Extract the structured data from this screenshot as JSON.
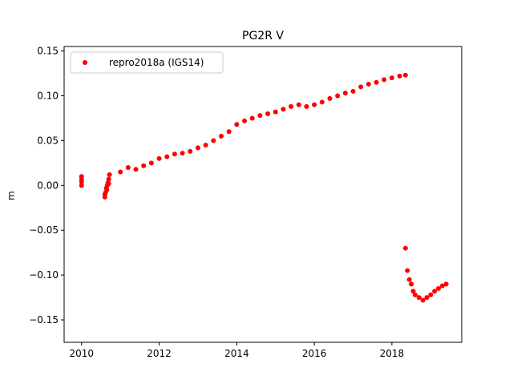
{
  "chart_data": {
    "type": "scatter",
    "title": "PG2R V",
    "xlabel": "",
    "ylabel": "m",
    "xlim": [
      2009.55,
      2019.8
    ],
    "ylim": [
      -0.175,
      0.155
    ],
    "xticks": [
      2010,
      2012,
      2014,
      2016,
      2018
    ],
    "yticks": [
      -0.15,
      -0.1,
      -0.05,
      0.0,
      0.05,
      0.1,
      0.15
    ],
    "xtick_labels": [
      "2010",
      "2012",
      "2014",
      "2016",
      "2018"
    ],
    "ytick_labels": [
      "−0.15",
      "−0.10",
      "−0.05",
      "0.00",
      "0.05",
      "0.10",
      "0.15"
    ],
    "grid": false,
    "legend_position": "top-left",
    "series": [
      {
        "name": "repro2018a (IGS14)",
        "color": "#ff0000",
        "marker": "circle",
        "x": [
          2010.0,
          2010.0,
          2010.0,
          2010.0,
          2010.6,
          2010.62,
          2010.64,
          2010.66,
          2010.68,
          2010.7,
          2010.72,
          2010.6,
          2010.65,
          2010.7,
          2011.0,
          2011.2,
          2011.4,
          2011.6,
          2011.8,
          2012.0,
          2012.2,
          2012.4,
          2012.6,
          2012.8,
          2013.0,
          2013.2,
          2013.4,
          2013.6,
          2013.8,
          2014.0,
          2014.2,
          2014.4,
          2014.6,
          2014.8,
          2015.0,
          2015.2,
          2015.4,
          2015.6,
          2015.8,
          2016.0,
          2016.2,
          2016.4,
          2016.6,
          2016.8,
          2017.0,
          2017.2,
          2017.4,
          2017.6,
          2017.8,
          2018.0,
          2018.2,
          2018.35,
          2018.35,
          2018.4,
          2018.45,
          2018.5,
          2018.55,
          2018.6,
          2018.7,
          2018.8,
          2018.9,
          2019.0,
          2019.1,
          2019.2,
          2019.3,
          2019.4
        ],
        "y": [
          0.01,
          0.007,
          0.004,
          0.0,
          -0.013,
          -0.008,
          -0.003,
          0.0,
          0.003,
          0.007,
          0.012,
          -0.01,
          -0.005,
          0.002,
          0.015,
          0.02,
          0.018,
          0.022,
          0.025,
          0.03,
          0.032,
          0.035,
          0.036,
          0.038,
          0.042,
          0.045,
          0.05,
          0.055,
          0.06,
          0.068,
          0.072,
          0.075,
          0.078,
          0.08,
          0.082,
          0.085,
          0.088,
          0.09,
          0.088,
          0.09,
          0.093,
          0.097,
          0.1,
          0.103,
          0.105,
          0.11,
          0.113,
          0.115,
          0.118,
          0.12,
          0.122,
          0.123,
          -0.07,
          -0.095,
          -0.105,
          -0.11,
          -0.118,
          -0.122,
          -0.125,
          -0.128,
          -0.125,
          -0.122,
          -0.118,
          -0.115,
          -0.112,
          -0.11
        ]
      }
    ]
  }
}
